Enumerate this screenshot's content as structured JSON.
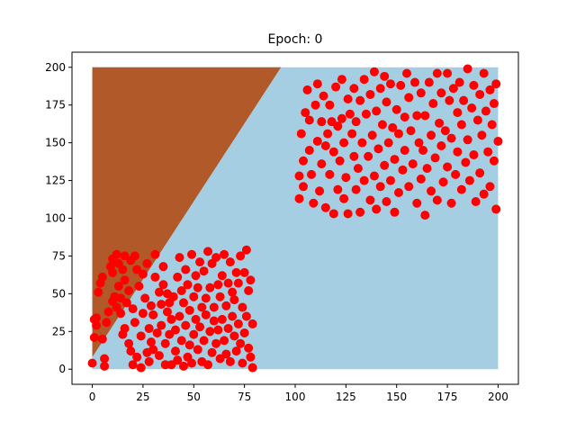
{
  "chart_data": {
    "type": "scatter",
    "title": "Epoch: 0",
    "xlabel": "",
    "ylabel": "",
    "xlim": [
      -10,
      210
    ],
    "ylim": [
      -10,
      210
    ],
    "x_ticks": [
      0,
      25,
      50,
      75,
      100,
      125,
      150,
      175,
      200
    ],
    "y_ticks": [
      0,
      25,
      50,
      75,
      100,
      125,
      150,
      175,
      200
    ],
    "x_tick_labels": [
      "0",
      "25",
      "50",
      "75",
      "100",
      "125",
      "150",
      "175",
      "200"
    ],
    "y_tick_labels": [
      "0",
      "25",
      "50",
      "75",
      "100",
      "125",
      "150",
      "175",
      "200"
    ],
    "grid": false,
    "decision_regions": {
      "x_range": [
        0,
        200
      ],
      "y_range": [
        0,
        200
      ],
      "boundary_line": [
        [
          0,
          8
        ],
        [
          93,
          200
        ]
      ],
      "region_above_boundary_color": "#b15928",
      "region_below_boundary_color": "#a6cee3"
    },
    "series": [
      {
        "marker": "circle",
        "color": "#ff0000",
        "points": [
          [
            0,
            4
          ],
          [
            1,
            21
          ],
          [
            1,
            33
          ],
          [
            2,
            29
          ],
          [
            2,
            34
          ],
          [
            3,
            51
          ],
          [
            4,
            57
          ],
          [
            5,
            61
          ],
          [
            5,
            20
          ],
          [
            6,
            7
          ],
          [
            6,
            2
          ],
          [
            7,
            31
          ],
          [
            8,
            38
          ],
          [
            9,
            68
          ],
          [
            10,
            73
          ],
          [
            10,
            45
          ],
          [
            10,
            64
          ],
          [
            11,
            48
          ],
          [
            12,
            76
          ],
          [
            12,
            41
          ],
          [
            13,
            70
          ],
          [
            13,
            55
          ],
          [
            14,
            47
          ],
          [
            14,
            37
          ],
          [
            15,
            23
          ],
          [
            15,
            66
          ],
          [
            16,
            59
          ],
          [
            16,
            27
          ],
          [
            16,
            75
          ],
          [
            17,
            44
          ],
          [
            18,
            52
          ],
          [
            18,
            17
          ],
          [
            19,
            12
          ],
          [
            19,
            72
          ],
          [
            20,
            40
          ],
          [
            20,
            3
          ],
          [
            21,
            31
          ],
          [
            21,
            75
          ],
          [
            22,
            8
          ],
          [
            22,
            66
          ],
          [
            23,
            55
          ],
          [
            24,
            1
          ],
          [
            24,
            22
          ],
          [
            25,
            63
          ],
          [
            25,
            37
          ],
          [
            26,
            47
          ],
          [
            27,
            11
          ],
          [
            27,
            70
          ],
          [
            28,
            27
          ],
          [
            28,
            5
          ],
          [
            29,
            18
          ],
          [
            29,
            42
          ],
          [
            30,
            36
          ],
          [
            30,
            13
          ],
          [
            31,
            61
          ],
          [
            31,
            76
          ],
          [
            32,
            24
          ],
          [
            33,
            51
          ],
          [
            33,
            9
          ],
          [
            34,
            43
          ],
          [
            34,
            29
          ],
          [
            35,
            56
          ],
          [
            35,
            68
          ],
          [
            36,
            17
          ],
          [
            36,
            3
          ],
          [
            37,
            38
          ],
          [
            37,
            50
          ],
          [
            38,
            44
          ],
          [
            38,
            23
          ],
          [
            39,
            3
          ],
          [
            39,
            33
          ],
          [
            40,
            48
          ],
          [
            41,
            12
          ],
          [
            41,
            26
          ],
          [
            42,
            61
          ],
          [
            42,
            6
          ],
          [
            43,
            74
          ],
          [
            43,
            35
          ],
          [
            44,
            52
          ],
          [
            44,
            19
          ],
          [
            45,
            2
          ],
          [
            45,
            44
          ],
          [
            46,
            66
          ],
          [
            46,
            29
          ],
          [
            47,
            8
          ],
          [
            47,
            56
          ],
          [
            48,
            39
          ],
          [
            48,
            16
          ],
          [
            49,
            76
          ],
          [
            49,
            4
          ],
          [
            50,
            23
          ],
          [
            50,
            48
          ],
          [
            51,
            62
          ],
          [
            51,
            33
          ],
          [
            52,
            13
          ],
          [
            52,
            54
          ],
          [
            53,
            71
          ],
          [
            53,
            28
          ],
          [
            54,
            5
          ],
          [
            54,
            41
          ],
          [
            55,
            65
          ],
          [
            55,
            19
          ],
          [
            56,
            47
          ],
          [
            56,
            36
          ],
          [
            57,
            3
          ],
          [
            57,
            78
          ],
          [
            58,
            25
          ],
          [
            58,
            54
          ],
          [
            59,
            11
          ],
          [
            59,
            70
          ],
          [
            60,
            41
          ],
          [
            60,
            32
          ],
          [
            61,
            74
          ],
          [
            61,
            17
          ],
          [
            62,
            56
          ],
          [
            62,
            26
          ],
          [
            63,
            48
          ],
          [
            63,
            7
          ],
          [
            64,
            62
          ],
          [
            64,
            33
          ],
          [
            65,
            19
          ],
          [
            65,
            76
          ],
          [
            66,
            42
          ],
          [
            66,
            10
          ],
          [
            67,
            57
          ],
          [
            67,
            27
          ],
          [
            68,
            71
          ],
          [
            68,
            5
          ],
          [
            69,
            35
          ],
          [
            69,
            51
          ],
          [
            70,
            22
          ],
          [
            70,
            46
          ],
          [
            71,
            64
          ],
          [
            71,
            12
          ],
          [
            72,
            30
          ],
          [
            72,
            57
          ],
          [
            73,
            17
          ],
          [
            73,
            75
          ],
          [
            74,
            4
          ],
          [
            74,
            41
          ],
          [
            75,
            24
          ],
          [
            75,
            64
          ],
          [
            76,
            79
          ],
          [
            76,
            35
          ],
          [
            77,
            14
          ],
          [
            77,
            52
          ],
          [
            78,
            59
          ],
          [
            78,
            8
          ],
          [
            79,
            1
          ],
          [
            79,
            30
          ],
          [
            102,
            113
          ],
          [
            102,
            128
          ],
          [
            103,
            156
          ],
          [
            104,
            121
          ],
          [
            104,
            138
          ],
          [
            105,
            170
          ],
          [
            106,
            185
          ],
          [
            107,
            145
          ],
          [
            107,
            165
          ],
          [
            108,
            129
          ],
          [
            109,
            110
          ],
          [
            110,
            175
          ],
          [
            111,
            151
          ],
          [
            111,
            189
          ],
          [
            112,
            118
          ],
          [
            113,
            136
          ],
          [
            113,
            164
          ],
          [
            114,
            181
          ],
          [
            115,
            107
          ],
          [
            115,
            148
          ],
          [
            116,
            156
          ],
          [
            117,
            129
          ],
          [
            117,
            175
          ],
          [
            118,
            164
          ],
          [
            119,
            103
          ],
          [
            119,
            144
          ],
          [
            120,
            187
          ],
          [
            121,
            119
          ],
          [
            121,
            161
          ],
          [
            122,
            138
          ],
          [
            123,
            166
          ],
          [
            123,
            192
          ],
          [
            124,
            113
          ],
          [
            124,
            150
          ],
          [
            125,
            127
          ],
          [
            126,
            179
          ],
          [
            126,
            103
          ],
          [
            127,
            169
          ],
          [
            128,
            156
          ],
          [
            129,
            141
          ],
          [
            129,
            186
          ],
          [
            130,
            119
          ],
          [
            130,
            164
          ],
          [
            131,
            133
          ],
          [
            132,
            178
          ],
          [
            132,
            104
          ],
          [
            133,
            150
          ],
          [
            134,
            192
          ],
          [
            134,
            125
          ],
          [
            135,
            169
          ],
          [
            136,
            141
          ],
          [
            137,
            112
          ],
          [
            137,
            182
          ],
          [
            138,
            155
          ],
          [
            139,
            128
          ],
          [
            139,
            197
          ],
          [
            140,
            171
          ],
          [
            140,
            106
          ],
          [
            141,
            146
          ],
          [
            142,
            186
          ],
          [
            142,
            121
          ],
          [
            143,
            162
          ],
          [
            144,
            135
          ],
          [
            144,
            194
          ],
          [
            145,
            111
          ],
          [
            145,
            177
          ],
          [
            146,
            150
          ],
          [
            147,
            125
          ],
          [
            147,
            189
          ],
          [
            148,
            160
          ],
          [
            149,
            139
          ],
          [
            149,
            104
          ],
          [
            150,
            172
          ],
          [
            151,
            117
          ],
          [
            151,
            156
          ],
          [
            152,
            188
          ],
          [
            153,
            132
          ],
          [
            154,
            167
          ],
          [
            154,
            145
          ],
          [
            155,
            196
          ],
          [
            156,
            121
          ],
          [
            156,
            180
          ],
          [
            157,
            158
          ],
          [
            158,
            136
          ],
          [
            159,
            190
          ],
          [
            160,
            110
          ],
          [
            160,
            168
          ],
          [
            161,
            150
          ],
          [
            162,
            126
          ],
          [
            162,
            183
          ],
          [
            163,
            145
          ],
          [
            164,
            168
          ],
          [
            164,
            102
          ],
          [
            165,
            133
          ],
          [
            166,
            190
          ],
          [
            167,
            155
          ],
          [
            167,
            118
          ],
          [
            168,
            176
          ],
          [
            169,
            140
          ],
          [
            170,
            196
          ],
          [
            170,
            112
          ],
          [
            171,
            163
          ],
          [
            172,
            148
          ],
          [
            172,
            183
          ],
          [
            173,
            124
          ],
          [
            174,
            158
          ],
          [
            175,
            196
          ],
          [
            175,
            134
          ],
          [
            176,
            178
          ],
          [
            177,
            110
          ],
          [
            177,
            153
          ],
          [
            178,
            186
          ],
          [
            179,
            129
          ],
          [
            180,
            170
          ],
          [
            180,
            144
          ],
          [
            181,
            190
          ],
          [
            182,
            119
          ],
          [
            182,
            162
          ],
          [
            183,
            178
          ],
          [
            184,
            137
          ],
          [
            185,
            199
          ],
          [
            185,
            152
          ],
          [
            186,
            125
          ],
          [
            187,
            173
          ],
          [
            188,
            188
          ],
          [
            188,
            142
          ],
          [
            189,
            111
          ],
          [
            190,
            165
          ],
          [
            191,
            182
          ],
          [
            191,
            130
          ],
          [
            192,
            155
          ],
          [
            193,
            196
          ],
          [
            193,
            116
          ],
          [
            194,
            171
          ],
          [
            195,
            144
          ],
          [
            196,
            185
          ],
          [
            196,
            121
          ],
          [
            197,
            162
          ],
          [
            198,
            138
          ],
          [
            198,
            176
          ],
          [
            199,
            106
          ],
          [
            199,
            189
          ],
          [
            200,
            151
          ]
        ]
      }
    ]
  }
}
